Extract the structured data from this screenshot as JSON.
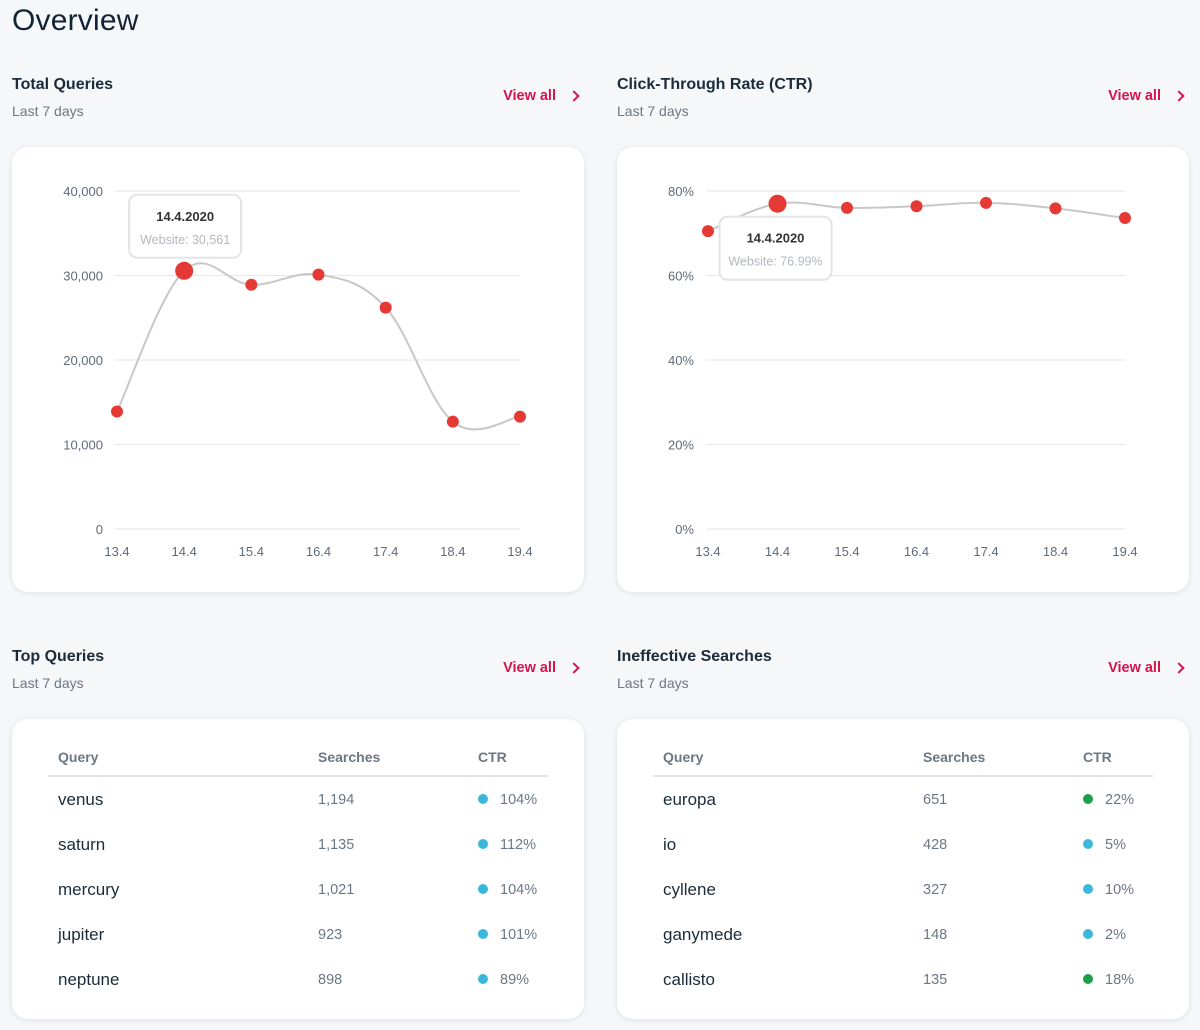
{
  "page": {
    "title": "Overview"
  },
  "sections": {
    "total_queries": {
      "title": "Total Queries",
      "subtitle": "Last 7 days",
      "view_all": "View all"
    },
    "ctr": {
      "title": "Click-Through Rate (CTR)",
      "subtitle": "Last 7 days",
      "view_all": "View all"
    },
    "top_queries": {
      "title": "Top Queries",
      "subtitle": "Last 7 days",
      "view_all": "View all"
    },
    "ineffective": {
      "title": "Ineffective Searches",
      "subtitle": "Last 7 days",
      "view_all": "View all"
    }
  },
  "colors": {
    "accent": "#d6134d",
    "point": "#e53935",
    "line": "#c8c8c8",
    "dot_blue": "#3bb8d9",
    "dot_green": "#1e9e48"
  },
  "icons": {
    "view_all": "chevron-right-icon"
  },
  "chart_data": [
    {
      "type": "line",
      "x": [
        "13.4",
        "14.4",
        "15.4",
        "16.4",
        "17.4",
        "18.4",
        "19.4"
      ],
      "series": [
        {
          "name": "Website",
          "values": [
            13900,
            30561,
            28900,
            30100,
            26200,
            12700,
            13300
          ]
        }
      ],
      "ylim": [
        0,
        40000
      ],
      "yticks": [
        0,
        10000,
        20000,
        30000,
        40000
      ],
      "ytick_labels": [
        "0",
        "10,000",
        "20,000",
        "30,000",
        "40,000"
      ],
      "grid": true,
      "highlight_index": 1,
      "tooltip": {
        "title": "14.4.2020",
        "text": "Website: 30,561"
      }
    },
    {
      "type": "line",
      "x": [
        "13.4",
        "14.4",
        "15.4",
        "16.4",
        "17.4",
        "18.4",
        "19.4"
      ],
      "series": [
        {
          "name": "Website",
          "values": [
            70.5,
            76.99,
            76.0,
            76.4,
            77.2,
            75.9,
            73.6
          ]
        }
      ],
      "ylim": [
        0,
        80
      ],
      "yticks": [
        0,
        20,
        40,
        60,
        80
      ],
      "ytick_labels": [
        "0%",
        "20%",
        "40%",
        "60%",
        "80%"
      ],
      "grid": true,
      "highlight_index": 1,
      "tooltip": {
        "title": "14.4.2020",
        "text": "Website: 76.99%"
      }
    }
  ],
  "tables": {
    "top_queries": {
      "headers": [
        "Query",
        "Searches",
        "CTR"
      ],
      "rows": [
        {
          "query": "venus",
          "searches": "1,194",
          "ctr": "104%",
          "status": "blue"
        },
        {
          "query": "saturn",
          "searches": "1,135",
          "ctr": "112%",
          "status": "blue"
        },
        {
          "query": "mercury",
          "searches": "1,021",
          "ctr": "104%",
          "status": "blue"
        },
        {
          "query": "jupiter",
          "searches": "923",
          "ctr": "101%",
          "status": "blue"
        },
        {
          "query": "neptune",
          "searches": "898",
          "ctr": "89%",
          "status": "blue"
        }
      ]
    },
    "ineffective": {
      "headers": [
        "Query",
        "Searches",
        "CTR"
      ],
      "rows": [
        {
          "query": "europa",
          "searches": "651",
          "ctr": "22%",
          "status": "green"
        },
        {
          "query": "io",
          "searches": "428",
          "ctr": "5%",
          "status": "blue"
        },
        {
          "query": "cyllene",
          "searches": "327",
          "ctr": "10%",
          "status": "blue"
        },
        {
          "query": "ganymede",
          "searches": "148",
          "ctr": "2%",
          "status": "blue"
        },
        {
          "query": "callisto",
          "searches": "135",
          "ctr": "18%",
          "status": "green"
        }
      ]
    }
  }
}
